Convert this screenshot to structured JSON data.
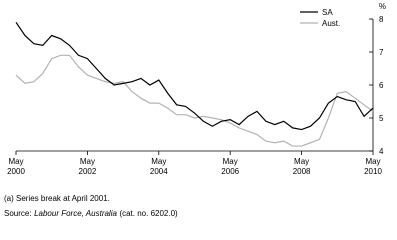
{
  "chart_data": {
    "type": "line",
    "y_unit": "%",
    "x": [
      "2000-05",
      "2000-08",
      "2000-11",
      "2001-02",
      "2001-05",
      "2001-08",
      "2001-11",
      "2002-02",
      "2002-05",
      "2002-08",
      "2002-11",
      "2003-02",
      "2003-05",
      "2003-08",
      "2003-11",
      "2004-02",
      "2004-05",
      "2004-08",
      "2004-11",
      "2005-02",
      "2005-05",
      "2005-08",
      "2005-11",
      "2006-02",
      "2006-05",
      "2006-08",
      "2006-11",
      "2007-02",
      "2007-05",
      "2007-08",
      "2007-11",
      "2008-02",
      "2008-05",
      "2008-08",
      "2008-11",
      "2009-02",
      "2009-05",
      "2009-08",
      "2009-11",
      "2010-02",
      "2010-05"
    ],
    "series": [
      {
        "name": "SA",
        "color": "#000000",
        "values": [
          7.9,
          7.5,
          7.25,
          7.2,
          7.5,
          7.4,
          7.2,
          6.9,
          6.8,
          6.5,
          6.2,
          6.0,
          6.05,
          6.1,
          6.2,
          6.0,
          6.15,
          5.75,
          5.4,
          5.35,
          5.15,
          4.9,
          4.75,
          4.9,
          4.95,
          4.8,
          5.05,
          5.2,
          4.9,
          4.8,
          4.9,
          4.7,
          4.65,
          4.75,
          5.0,
          5.45,
          5.65,
          5.55,
          5.5,
          5.05,
          5.3
        ]
      },
      {
        "name": "Aust.",
        "color": "#b3b3b3",
        "values": [
          6.3,
          6.05,
          6.1,
          6.35,
          6.8,
          6.9,
          6.9,
          6.55,
          6.3,
          6.2,
          6.1,
          6.05,
          6.1,
          5.8,
          5.6,
          5.45,
          5.45,
          5.3,
          5.1,
          5.1,
          5.0,
          5.05,
          5.0,
          4.95,
          4.85,
          4.7,
          4.6,
          4.5,
          4.3,
          4.25,
          4.3,
          4.15,
          4.15,
          4.25,
          4.35,
          5.0,
          5.75,
          5.8,
          5.6,
          5.4,
          5.2
        ]
      }
    ],
    "xlim": [
      "2000-05",
      "2010-05"
    ],
    "xticks": [
      {
        "value": "2000-05",
        "label": [
          "May",
          "2000"
        ]
      },
      {
        "value": "2002-05",
        "label": [
          "May",
          "2002"
        ]
      },
      {
        "value": "2004-05",
        "label": [
          "May",
          "2004"
        ]
      },
      {
        "value": "2006-05",
        "label": [
          "May",
          "2006"
        ]
      },
      {
        "value": "2008-05",
        "label": [
          "May",
          "2008"
        ]
      },
      {
        "value": "2010-05",
        "label": [
          "May",
          "2010"
        ]
      }
    ],
    "ylim": [
      4,
      8
    ],
    "yticks": [
      4,
      5,
      6,
      7,
      8
    ],
    "legend": "top-right",
    "footnotes": {
      "note": "(a) Series break at April 2001.",
      "source_prefix": "Source:",
      "source_title": "Labour Force, Australia",
      "source_suffix": "(cat. no. 6202.0)"
    }
  }
}
